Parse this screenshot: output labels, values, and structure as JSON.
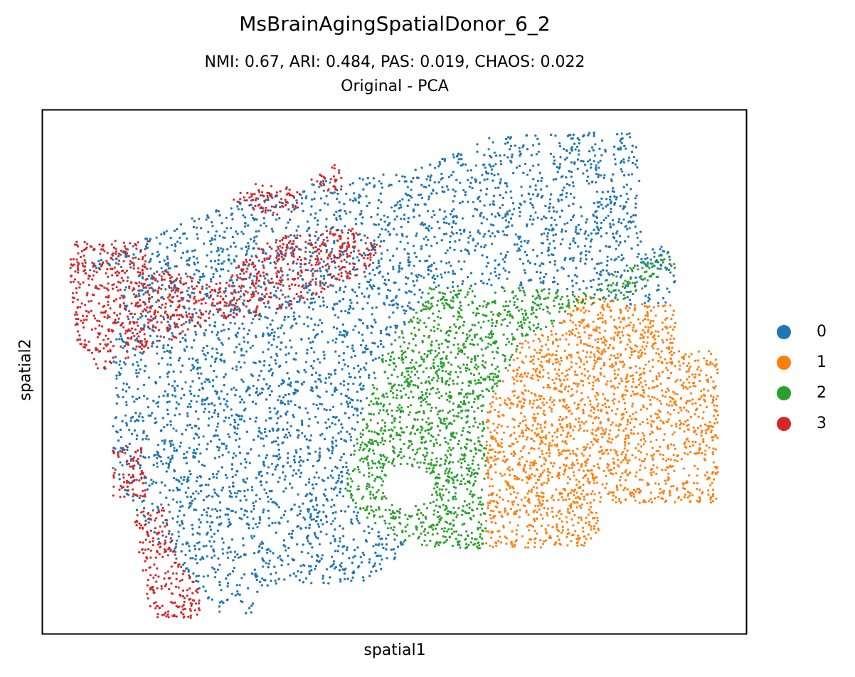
{
  "figure": {
    "title": "MsBrainAgingSpatialDonor_6_2",
    "subtitle_metrics": "NMI: 0.67,  ARI: 0.484,  PAS: 0.019,  CHAOS: 0.022",
    "subtitle_method": "Original - PCA"
  },
  "chart_data": {
    "type": "scatter",
    "title": "MsBrainAgingSpatialDonor_6_2",
    "subtitle": "NMI: 0.67,  ARI: 0.484,  PAS: 0.019,  CHAOS: 0.022 / Original - PCA",
    "xlabel": "spatial1",
    "ylabel": "spatial2",
    "xlim": [
      0,
      100
    ],
    "ylim": [
      0,
      100
    ],
    "xticks": [],
    "yticks": [],
    "grid": false,
    "legend_position": "right",
    "point_counts_approx": {
      "0": 5400,
      "1": 2300,
      "2": 1900,
      "3": 1050
    },
    "series": [
      {
        "name": "0",
        "color": "#1f77b4",
        "regions": [
          [
            [
              4,
              69
            ],
            [
              25,
              82
            ],
            [
              42,
              87
            ],
            [
              52,
              88
            ],
            [
              64,
              95
            ],
            [
              85,
              96
            ],
            [
              85,
              74
            ],
            [
              90,
              74
            ],
            [
              90,
              63
            ],
            [
              84,
              62
            ],
            [
              76,
              65
            ],
            [
              70,
              66
            ],
            [
              55,
              66
            ],
            [
              48,
              52
            ],
            [
              45,
              40
            ],
            [
              43,
              28
            ],
            [
              45,
              23
            ],
            [
              52,
              17
            ],
            [
              47,
              10
            ],
            [
              31,
              9
            ],
            [
              30,
              3
            ],
            [
              25,
              4
            ],
            [
              15,
              20
            ],
            [
              10,
              31
            ],
            [
              10,
              56
            ],
            [
              12,
              70
            ]
          ]
        ]
      },
      {
        "name": "1",
        "color": "#ff7f0e",
        "regions": [
          [
            [
              76,
              65
            ],
            [
              83,
              63
            ],
            [
              90,
              63
            ],
            [
              90,
              54
            ],
            [
              96,
              54
            ],
            [
              96,
              25
            ],
            [
              79,
              25
            ],
            [
              79,
              17
            ],
            [
              63,
              16
            ],
            [
              63,
              43
            ],
            [
              66,
              50
            ],
            [
              68,
              56
            ],
            [
              73,
              59
            ]
          ]
        ]
      },
      {
        "name": "2",
        "color": "#2ca02c",
        "regions": [
          [
            [
              55,
              66
            ],
            [
              70,
              66
            ],
            [
              76,
              65
            ],
            [
              73,
              59
            ],
            [
              68,
              56
            ],
            [
              66,
              50
            ],
            [
              63,
              43
            ],
            [
              63,
              16
            ],
            [
              52,
              17
            ],
            [
              45,
              23
            ],
            [
              43,
              28
            ],
            [
              45,
              40
            ],
            [
              48,
              52
            ]
          ],
          [
            [
              73,
              62
            ],
            [
              83,
              70
            ],
            [
              89,
              73
            ],
            [
              90,
              70
            ],
            [
              83,
              64
            ]
          ]
        ],
        "holes": [
          [
            52,
            28,
            3.6
          ]
        ]
      },
      {
        "name": "3",
        "color": "#d62728",
        "regions": [
          [
            [
              4,
              75
            ],
            [
              15,
              75
            ],
            [
              15,
              70
            ],
            [
              25,
              67
            ],
            [
              31,
              74
            ],
            [
              34,
              76
            ],
            [
              44,
              78
            ],
            [
              48,
              74
            ],
            [
              46,
              69
            ],
            [
              38,
              64
            ],
            [
              32,
              61
            ],
            [
              25,
              60
            ],
            [
              13,
              53
            ],
            [
              8,
              50
            ],
            [
              5,
              55
            ],
            [
              4,
              65
            ]
          ],
          [
            [
              27,
              83
            ],
            [
              30,
              86
            ],
            [
              37,
              85
            ],
            [
              36,
              80
            ],
            [
              30,
              80
            ]
          ],
          [
            [
              38,
              87
            ],
            [
              42,
              90
            ],
            [
              43,
              85
            ],
            [
              40,
              84
            ]
          ],
          [
            [
              10,
              36
            ],
            [
              14,
              36
            ],
            [
              15,
              26
            ],
            [
              10,
              26
            ]
          ],
          [
            [
              13,
              23
            ],
            [
              17,
              25
            ],
            [
              19,
              15
            ],
            [
              23,
              7
            ],
            [
              22,
              3
            ],
            [
              15,
              3
            ],
            [
              14,
              12
            ]
          ]
        ]
      }
    ]
  }
}
